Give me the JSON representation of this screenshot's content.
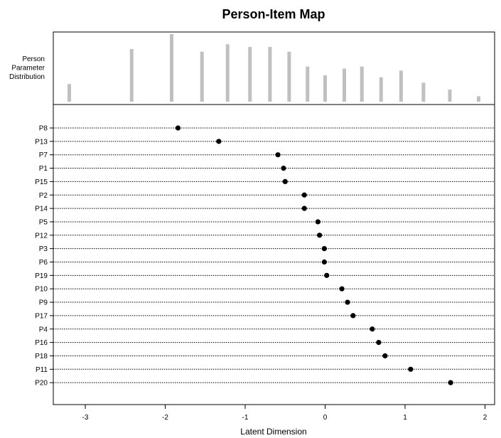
{
  "title": "Person-Item Map",
  "colors": {
    "frame": "#000000",
    "bar": "#c0c0c0",
    "point": "#000000",
    "guide": "#000000",
    "background": "#ffffff"
  },
  "chart_data": {
    "type": "scatter",
    "title": "Person-Item Map",
    "xlabel": "Latent Dimension",
    "xlim": [
      -3.4,
      2.12
    ],
    "xticks": [
      -3,
      -2,
      -1,
      0,
      1,
      2
    ],
    "xtick_labels": [
      "-3",
      "-2",
      "-1",
      "0",
      "1",
      "2"
    ],
    "distribution": {
      "label_lines": [
        "Person",
        "Parameter",
        "Distribution"
      ],
      "type": "bar",
      "x": [
        -3.2,
        -2.42,
        -1.92,
        -1.54,
        -1.22,
        -0.94,
        -0.69,
        -0.45,
        -0.22,
        0.0,
        0.24,
        0.46,
        0.7,
        0.95,
        1.23,
        1.56,
        1.92
      ],
      "values": [
        26,
        78,
        100,
        74,
        85,
        81,
        81,
        74,
        52,
        39,
        49,
        52,
        36,
        46,
        28,
        18,
        8
      ],
      "ylim": [
        0,
        100
      ]
    },
    "series": [
      {
        "categories": [
          "P8",
          "P13",
          "P7",
          "P1",
          "P15",
          "P2",
          "P14",
          "P5",
          "P12",
          "P3",
          "P6",
          "P19",
          "P10",
          "P9",
          "P17",
          "P4",
          "P16",
          "P18",
          "P11",
          "P20"
        ],
        "values": [
          -1.84,
          -1.33,
          -0.59,
          -0.52,
          -0.5,
          -0.26,
          -0.26,
          -0.09,
          -0.07,
          -0.01,
          -0.01,
          0.02,
          0.21,
          0.28,
          0.35,
          0.59,
          0.67,
          0.75,
          1.07,
          1.57
        ]
      }
    ],
    "grid": false,
    "guide_lines": "dotted"
  }
}
